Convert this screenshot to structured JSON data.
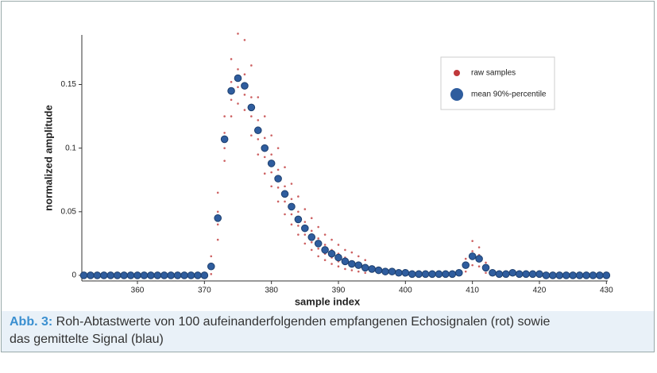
{
  "chart_data": {
    "type": "scatter",
    "xlabel": "sample index",
    "ylabel": "normalized amplitude",
    "xlim": [
      351.7,
      430.2
    ],
    "ylim": [
      -0.0044,
      0.189
    ],
    "xticks": [
      360,
      370,
      380,
      390,
      400,
      410,
      420,
      430
    ],
    "yticks": [
      0,
      0.05,
      0.1,
      0.15
    ],
    "legend": "upper right",
    "series": [
      {
        "name": "raw samples",
        "color": "#c0393b",
        "marker": "small",
        "x": [
          371,
          371,
          371,
          371,
          372,
          372,
          372,
          372,
          373,
          373,
          373,
          373,
          374,
          374,
          374,
          374,
          375,
          375,
          375,
          375,
          376,
          376,
          376,
          376,
          377,
          377,
          377,
          377,
          378,
          378,
          378,
          378,
          379,
          379,
          379,
          379,
          380,
          380,
          380,
          380,
          381,
          381,
          381,
          381,
          382,
          382,
          382,
          382,
          383,
          383,
          383,
          383,
          384,
          384,
          384,
          384,
          385,
          385,
          385,
          385,
          386,
          386,
          386,
          386,
          387,
          387,
          387,
          387,
          388,
          388,
          388,
          388,
          389,
          389,
          389,
          389,
          390,
          390,
          390,
          390,
          391,
          391,
          391,
          391,
          392,
          392,
          392,
          392,
          393,
          393,
          393,
          393,
          394,
          394,
          394,
          394,
          409,
          409,
          409,
          409,
          410,
          410,
          410,
          410,
          411,
          411,
          411,
          411,
          412,
          412,
          412,
          412
        ],
        "values": [
          0.001,
          0.005,
          0.009,
          0.015,
          0.028,
          0.04,
          0.05,
          0.065,
          0.09,
          0.1,
          0.112,
          0.125,
          0.125,
          0.138,
          0.152,
          0.17,
          0.135,
          0.148,
          0.162,
          0.19,
          0.13,
          0.142,
          0.158,
          0.185,
          0.11,
          0.125,
          0.14,
          0.165,
          0.095,
          0.107,
          0.122,
          0.14,
          0.08,
          0.093,
          0.108,
          0.125,
          0.07,
          0.081,
          0.095,
          0.11,
          0.058,
          0.069,
          0.083,
          0.1,
          0.048,
          0.058,
          0.07,
          0.085,
          0.04,
          0.048,
          0.06,
          0.072,
          0.032,
          0.039,
          0.05,
          0.062,
          0.025,
          0.032,
          0.042,
          0.052,
          0.02,
          0.026,
          0.035,
          0.045,
          0.015,
          0.021,
          0.029,
          0.038,
          0.012,
          0.017,
          0.024,
          0.032,
          0.009,
          0.014,
          0.02,
          0.028,
          0.007,
          0.011,
          0.017,
          0.024,
          0.005,
          0.009,
          0.014,
          0.02,
          0.004,
          0.007,
          0.011,
          0.018,
          0.003,
          0.006,
          0.01,
          0.015,
          0.002,
          0.004,
          0.008,
          0.012,
          0.003,
          0.006,
          0.01,
          0.013,
          0.008,
          0.013,
          0.019,
          0.027,
          0.007,
          0.011,
          0.016,
          0.022,
          0.002,
          0.005,
          0.008,
          0.01
        ]
      },
      {
        "name": "mean 90%-percentile",
        "color": "#2f5d9e",
        "marker": "large",
        "x": [
          352,
          353,
          354,
          355,
          356,
          357,
          358,
          359,
          360,
          361,
          362,
          363,
          364,
          365,
          366,
          367,
          368,
          369,
          370,
          371,
          372,
          373,
          374,
          375,
          376,
          377,
          378,
          379,
          380,
          381,
          382,
          383,
          384,
          385,
          386,
          387,
          388,
          389,
          390,
          391,
          392,
          393,
          394,
          395,
          396,
          397,
          398,
          399,
          400,
          401,
          402,
          403,
          404,
          405,
          406,
          407,
          408,
          409,
          410,
          411,
          412,
          413,
          414,
          415,
          416,
          417,
          418,
          419,
          420,
          421,
          422,
          423,
          424,
          425,
          426,
          427,
          428,
          429,
          430
        ],
        "values": [
          0,
          0,
          0,
          0,
          0,
          0,
          0,
          0,
          0,
          0,
          0,
          0,
          0,
          0,
          0,
          0,
          0,
          0,
          0,
          0.007,
          0.045,
          0.107,
          0.145,
          0.155,
          0.149,
          0.132,
          0.114,
          0.1,
          0.088,
          0.076,
          0.064,
          0.054,
          0.044,
          0.037,
          0.03,
          0.025,
          0.02,
          0.017,
          0.014,
          0.011,
          0.009,
          0.008,
          0.006,
          0.005,
          0.004,
          0.003,
          0.003,
          0.002,
          0.002,
          0.001,
          0.001,
          0.001,
          0.001,
          0.001,
          0.001,
          0.001,
          0.002,
          0.008,
          0.015,
          0.013,
          0.006,
          0.002,
          0.001,
          0.001,
          0.002,
          0.001,
          0.001,
          0.001,
          0.001,
          0,
          0,
          0,
          0,
          0,
          0,
          0,
          0,
          0,
          0
        ]
      }
    ]
  },
  "caption": {
    "label": "Abb. 3:",
    "text": "Roh-Abtastwerte von 100 aufeinanderfolgenden empfangenen Echosignalen (rot) sowie das gemittelte Signal (blau)"
  }
}
